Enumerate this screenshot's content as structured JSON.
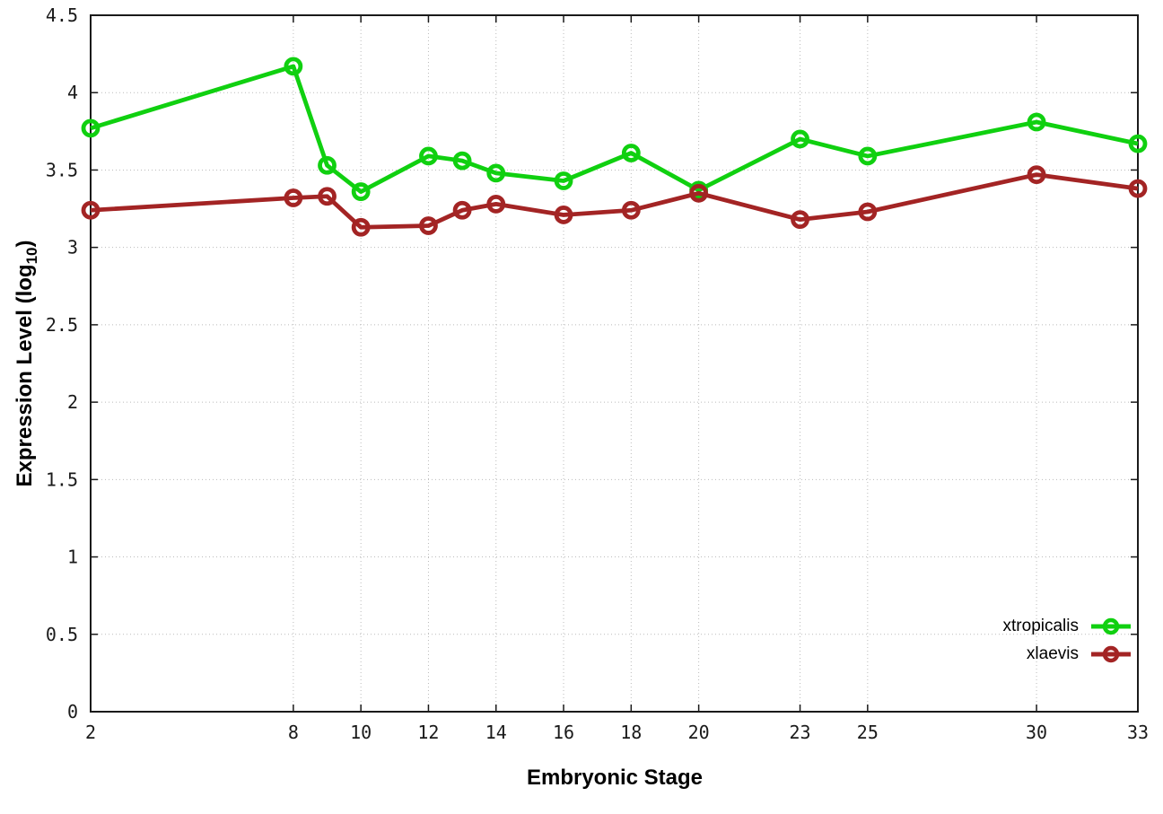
{
  "chart_data": {
    "type": "line",
    "title": "",
    "xlabel": "Embryonic Stage",
    "ylabel": "Expression Level (log10)",
    "ylabel_parts": {
      "prefix": "Expression Level (log",
      "sub": "10",
      "suffix": ")"
    },
    "x": [
      2,
      8,
      9,
      10,
      12,
      13,
      14,
      16,
      18,
      20,
      23,
      25,
      30,
      33
    ],
    "series": [
      {
        "name": "xtropicalis",
        "color": "#10d010",
        "marker": "open-circle",
        "values": [
          3.77,
          4.17,
          3.53,
          3.36,
          3.59,
          3.56,
          3.48,
          3.43,
          3.61,
          3.37,
          3.7,
          3.59,
          3.81,
          3.67
        ]
      },
      {
        "name": "xlaevis",
        "color": "#a32424",
        "marker": "open-circle",
        "values": [
          3.24,
          3.32,
          3.33,
          3.13,
          3.14,
          3.24,
          3.28,
          3.21,
          3.24,
          3.35,
          3.18,
          3.23,
          3.47,
          3.38
        ]
      }
    ],
    "xticks": [
      2,
      8,
      10,
      12,
      14,
      16,
      18,
      20,
      23,
      25,
      30,
      33
    ],
    "yticks": [
      0,
      0.5,
      1,
      1.5,
      2,
      2.5,
      3,
      3.5,
      4,
      4.5
    ],
    "xlim": [
      2,
      33
    ],
    "ylim": [
      0,
      4.5
    ],
    "grid": true,
    "grid_style": "dotted",
    "legend_position": "inside-bottom-right",
    "colors": {
      "border": "#1a1a1a",
      "grid": "#bbbbbb",
      "tick_text": "#1a1a1a"
    }
  }
}
